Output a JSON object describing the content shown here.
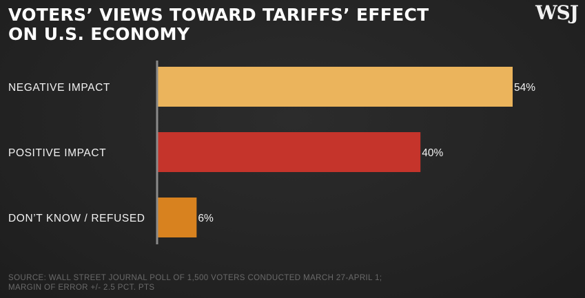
{
  "title_lines": [
    "VOTERS’ VIEWS TOWARD TARIFFS’ EFFECT",
    "ON U.S. ECONOMY"
  ],
  "logo_text": "WSJ",
  "chart_data": {
    "type": "bar",
    "orientation": "horizontal",
    "categories": [
      "NEGATIVE IMPACT",
      "POSITIVE IMPACT",
      "DON’T KNOW / REFUSED"
    ],
    "values": [
      54,
      40,
      6
    ],
    "value_labels": [
      "54%",
      "40%",
      "6%"
    ],
    "colors": [
      "#ebb45c",
      "#c5342b",
      "#d8821f"
    ],
    "xlim": [
      0,
      54
    ],
    "grid": false,
    "legend": "none",
    "axis_color": "#8a8a8a"
  },
  "source_lines": [
    "SOURCE: WALL STREET JOURNAL POLL OF 1,500 VOTERS CONDUCTED MARCH 27-APRIL 1;",
    "MARGIN OF ERROR +/- 2.5 PCT. PTS"
  ]
}
